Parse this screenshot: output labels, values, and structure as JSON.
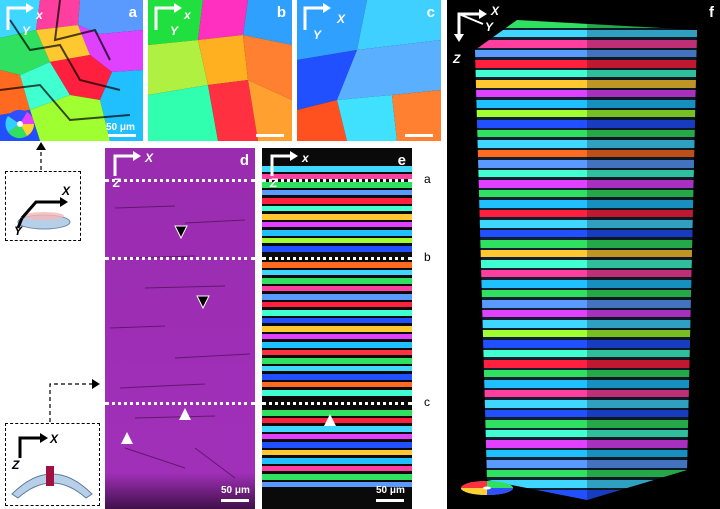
{
  "panels": {
    "a": {
      "label": "a",
      "axis_x": "x",
      "axis_y": "Y",
      "scale": "50 μm"
    },
    "b": {
      "label": "b",
      "axis_x": "x",
      "axis_y": "Y"
    },
    "c": {
      "label": "c",
      "axis_x": "X",
      "axis_y": "Y"
    },
    "d": {
      "label": "d",
      "axis_x": "X",
      "axis_z": "Z",
      "scale": "50 μm"
    },
    "e": {
      "label": "e",
      "axis_x": "x",
      "axis_z": "Z",
      "scale": "50 μm"
    },
    "f": {
      "label": "f",
      "axis_x": "X",
      "axis_y": "Y",
      "axis_z": "Z"
    }
  },
  "plane_labels": [
    "a",
    "b",
    "c"
  ],
  "schematics": {
    "top": {
      "axis_x": "X",
      "axis_y": "Y"
    },
    "bottom": {
      "axis_x": "X",
      "axis_z": "Z"
    }
  },
  "colors": {
    "ipf_red": "#ff2040",
    "ipf_green": "#20e040",
    "ipf_blue": "#2080ff",
    "purple": "#a030b8"
  }
}
